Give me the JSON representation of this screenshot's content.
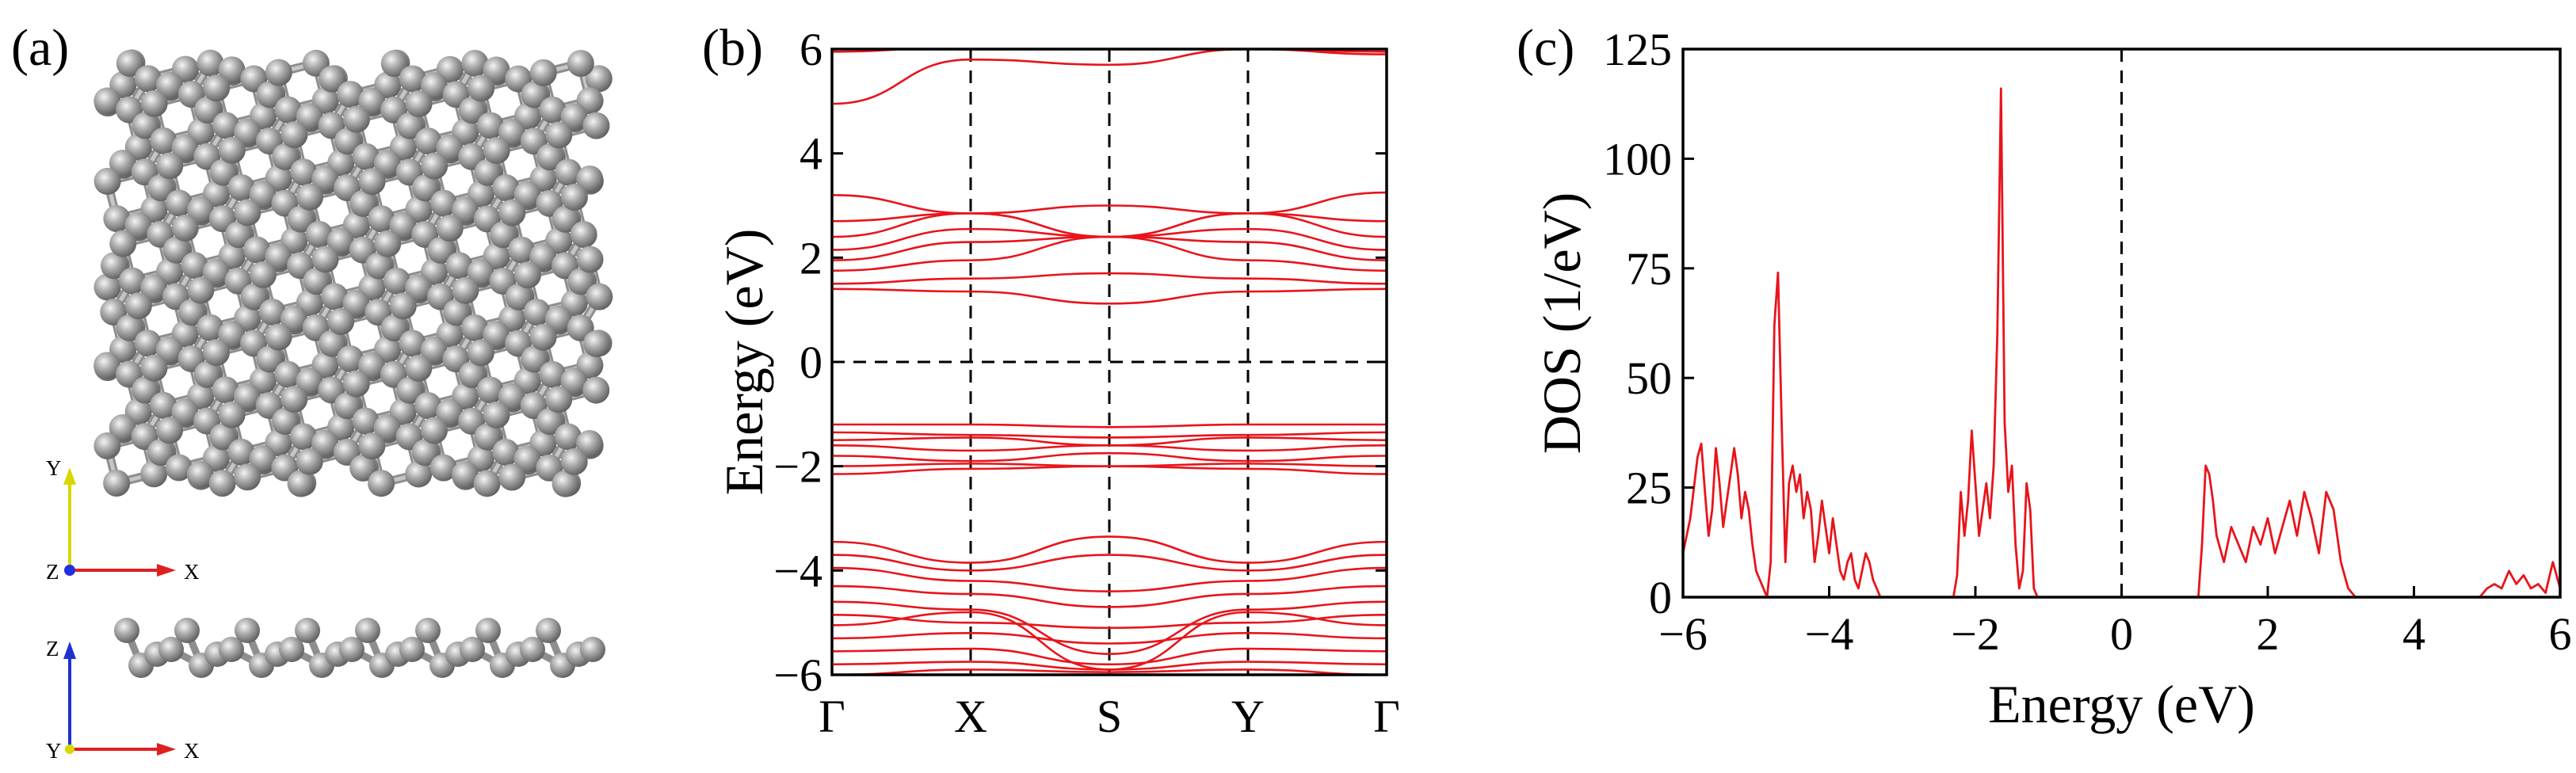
{
  "panels": {
    "a": {
      "label": "(a)",
      "top_view_axes": {
        "vertical": "Y",
        "origin": "Z",
        "horizontal": "X"
      },
      "side_view_axes": {
        "vertical": "Z",
        "origin": "Y",
        "horizontal": "X"
      }
    },
    "b": {
      "label": "(b)"
    },
    "c": {
      "label": "(c)"
    }
  },
  "chart_data": [
    {
      "type": "line",
      "panel": "b",
      "title": "",
      "xlabel": "",
      "ylabel": "Energy (eV)",
      "ylim": [
        -6,
        6
      ],
      "yticks": [
        -6,
        -4,
        -2,
        0,
        2,
        4,
        6
      ],
      "kpath": [
        "Γ",
        "X",
        "S",
        "Y",
        "Γ"
      ],
      "kpath_positions": [
        0,
        1,
        2,
        3,
        4
      ],
      "fermi_level": 0,
      "line_color": "#e8141b",
      "series": [
        {
          "values": [
            5.95,
            6.05,
            6.1,
            6.0,
            5.95
          ]
        },
        {
          "values": [
            4.95,
            5.8,
            5.7,
            6.0,
            5.9
          ]
        },
        {
          "values": [
            3.2,
            2.85,
            3.0,
            2.85,
            3.25
          ]
        },
        {
          "values": [
            2.7,
            2.85,
            2.4,
            2.85,
            2.7
          ]
        },
        {
          "values": [
            2.4,
            2.85,
            2.4,
            2.85,
            2.4
          ]
        },
        {
          "values": [
            2.15,
            2.55,
            2.4,
            2.55,
            2.15
          ]
        },
        {
          "values": [
            1.95,
            2.3,
            2.4,
            2.3,
            1.95
          ]
        },
        {
          "values": [
            1.75,
            1.95,
            2.4,
            1.95,
            1.75
          ]
        },
        {
          "values": [
            1.5,
            1.6,
            1.7,
            1.6,
            1.5
          ]
        },
        {
          "values": [
            1.4,
            1.35,
            1.12,
            1.35,
            1.4
          ]
        },
        {
          "values": [
            -1.2,
            -1.2,
            -1.25,
            -1.2,
            -1.2
          ]
        },
        {
          "values": [
            -1.35,
            -1.4,
            -1.45,
            -1.4,
            -1.35
          ]
        },
        {
          "values": [
            -1.5,
            -1.45,
            -1.6,
            -1.45,
            -1.5
          ]
        },
        {
          "values": [
            -1.6,
            -1.7,
            -1.6,
            -1.7,
            -1.6
          ]
        },
        {
          "values": [
            -1.8,
            -1.9,
            -1.75,
            -1.9,
            -1.8
          ]
        },
        {
          "values": [
            -2.0,
            -1.95,
            -2.0,
            -1.95,
            -2.0
          ]
        },
        {
          "values": [
            -2.15,
            -2.05,
            -2.0,
            -2.05,
            -2.15
          ]
        },
        {
          "values": [
            -3.45,
            -3.85,
            -3.35,
            -3.85,
            -3.45
          ]
        },
        {
          "values": [
            -3.7,
            -4.0,
            -3.7,
            -4.0,
            -3.7
          ]
        },
        {
          "values": [
            -3.95,
            -4.2,
            -4.4,
            -4.2,
            -3.95
          ]
        },
        {
          "values": [
            -4.3,
            -4.45,
            -4.7,
            -4.45,
            -4.3
          ]
        },
        {
          "values": [
            -4.6,
            -4.75,
            -5.6,
            -4.75,
            -4.6
          ]
        },
        {
          "values": [
            -4.85,
            -5.0,
            -5.1,
            -5.0,
            -4.85
          ]
        },
        {
          "values": [
            -5.05,
            -4.8,
            -5.9,
            -4.8,
            -5.05
          ]
        },
        {
          "values": [
            -5.3,
            -5.2,
            -5.4,
            -5.2,
            -5.3
          ]
        },
        {
          "values": [
            -5.55,
            -5.5,
            -5.8,
            -5.5,
            -5.55
          ]
        },
        {
          "values": [
            -5.8,
            -5.75,
            -5.9,
            -5.75,
            -5.8
          ]
        },
        {
          "values": [
            -6.0,
            -5.9,
            -5.95,
            -5.9,
            -6.0
          ]
        }
      ]
    },
    {
      "type": "line",
      "panel": "c",
      "title": "",
      "xlabel": "Energy (eV)",
      "ylabel": "DOS (1/eV)",
      "xlim": [
        -6,
        6
      ],
      "ylim": [
        0,
        125
      ],
      "xticks": [
        -6,
        -4,
        -2,
        0,
        2,
        4,
        6
      ],
      "yticks": [
        0,
        25,
        50,
        75,
        100,
        125
      ],
      "fermi_level": 0,
      "line_color": "#e8141b",
      "x": [
        -6.0,
        -5.9,
        -5.8,
        -5.75,
        -5.7,
        -5.65,
        -5.6,
        -5.55,
        -5.5,
        -5.45,
        -5.4,
        -5.35,
        -5.3,
        -5.25,
        -5.2,
        -5.15,
        -5.1,
        -5.05,
        -5.0,
        -4.95,
        -4.9,
        -4.85,
        -4.8,
        -4.75,
        -4.7,
        -4.65,
        -4.6,
        -4.55,
        -4.5,
        -4.45,
        -4.4,
        -4.35,
        -4.3,
        -4.25,
        -4.2,
        -4.15,
        -4.1,
        -4.05,
        -4.0,
        -3.95,
        -3.9,
        -3.85,
        -3.8,
        -3.75,
        -3.7,
        -3.65,
        -3.6,
        -3.55,
        -3.5,
        -3.45,
        -3.4,
        -3.35,
        -3.3,
        -3.25,
        -2.3,
        -2.25,
        -2.2,
        -2.15,
        -2.1,
        -2.05,
        -2.0,
        -1.95,
        -1.9,
        -1.85,
        -1.8,
        -1.75,
        -1.7,
        -1.65,
        -1.6,
        -1.55,
        -1.5,
        -1.45,
        -1.4,
        -1.35,
        -1.3,
        -1.25,
        -1.2,
        -1.15,
        -1.1,
        1.05,
        1.1,
        1.15,
        1.2,
        1.25,
        1.3,
        1.4,
        1.5,
        1.6,
        1.7,
        1.8,
        1.9,
        2.0,
        2.1,
        2.2,
        2.3,
        2.4,
        2.5,
        2.6,
        2.7,
        2.8,
        2.9,
        3.0,
        3.1,
        3.2,
        3.25,
        3.3,
        4.9,
        5.0,
        5.1,
        5.2,
        5.3,
        5.4,
        5.5,
        5.6,
        5.7,
        5.8,
        5.9,
        6.0
      ],
      "values": [
        10,
        18,
        32,
        35,
        24,
        14,
        20,
        34,
        26,
        16,
        22,
        28,
        34,
        28,
        18,
        24,
        20,
        12,
        6,
        4,
        2,
        0,
        8,
        62,
        74,
        40,
        8,
        26,
        30,
        24,
        28,
        18,
        24,
        20,
        8,
        14,
        22,
        16,
        10,
        18,
        12,
        6,
        4,
        8,
        10,
        4,
        2,
        6,
        10,
        8,
        4,
        2,
        0,
        0,
        0,
        5,
        24,
        14,
        22,
        38,
        26,
        14,
        20,
        26,
        18,
        30,
        60,
        116,
        40,
        24,
        30,
        12,
        2,
        6,
        26,
        20,
        2,
        0,
        0,
        0,
        12,
        30,
        28,
        22,
        14,
        8,
        16,
        12,
        8,
        16,
        12,
        18,
        10,
        16,
        22,
        14,
        24,
        18,
        10,
        24,
        20,
        8,
        2,
        0,
        0,
        0,
        0,
        2,
        3,
        2,
        6,
        3,
        5,
        2,
        3,
        1,
        8,
        2
      ]
    }
  ]
}
